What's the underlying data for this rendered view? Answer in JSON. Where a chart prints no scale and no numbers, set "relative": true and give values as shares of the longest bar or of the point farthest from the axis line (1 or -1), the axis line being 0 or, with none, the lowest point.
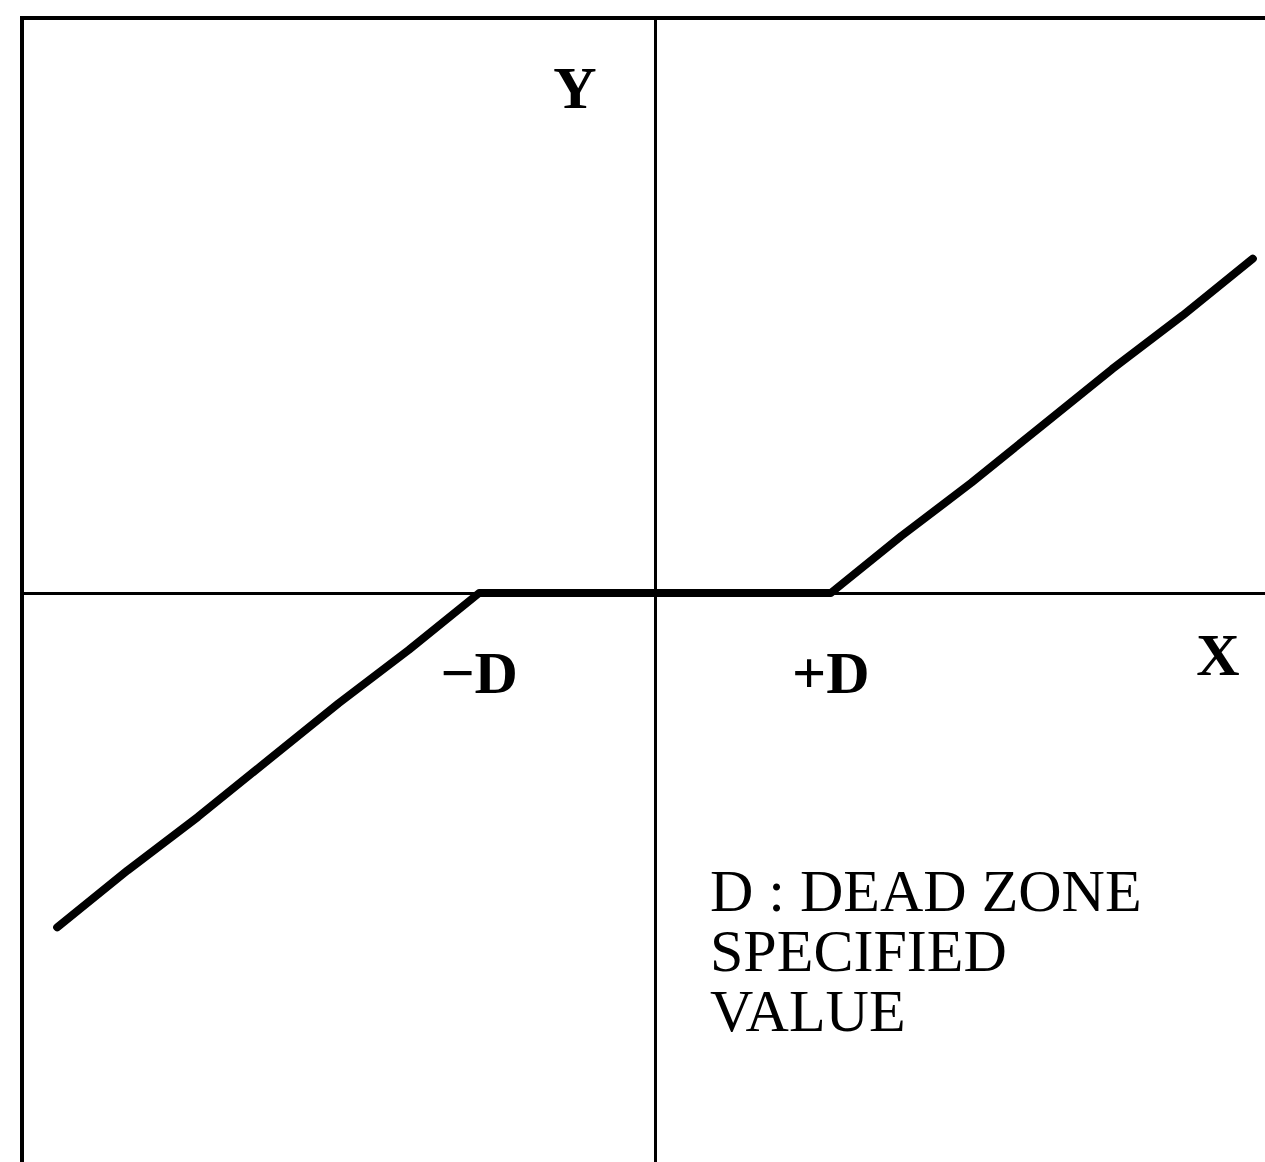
{
  "chart_data": {
    "type": "line",
    "xlabel": "X",
    "ylabel": "Y",
    "categories": [
      null,
      null,
      null,
      null,
      null,
      null,
      "−D",
      null,
      null,
      null,
      null,
      "+D",
      null,
      null,
      null,
      null,
      null,
      null
    ],
    "values": [
      -1,
      -0.83,
      -0.67,
      -0.5,
      -0.33,
      -0.17,
      0,
      0,
      0,
      0,
      0,
      0,
      0.17,
      0.33,
      0.5,
      0.67,
      0.83,
      1
    ],
    "color": "#000000",
    "relative": true,
    "annotations": [
      "D : DEAD ZONE SPECIFIED VALUE"
    ],
    "marker": "none",
    "grid": false
  }
}
